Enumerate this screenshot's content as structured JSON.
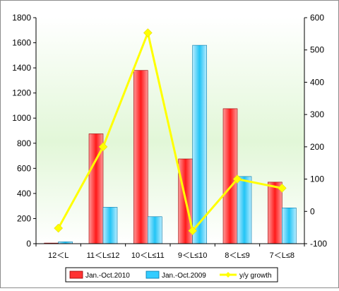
{
  "chart_data": {
    "type": "bar",
    "categories": [
      "12＜L",
      "11＜L≤12",
      "10＜L≤11",
      "9＜L≤10",
      "8＜L≤9",
      "7＜L≤8"
    ],
    "series": [
      {
        "name": "Jan.-Oct.2010",
        "type": "bar",
        "axis": "left",
        "color": "#ff3333",
        "values": [
          5,
          875,
          1380,
          675,
          1075,
          490
        ]
      },
      {
        "name": "Jan.-Oct.2009",
        "type": "bar",
        "axis": "left",
        "color": "#33ccff",
        "values": [
          15,
          290,
          215,
          1580,
          535,
          285
        ]
      },
      {
        "name": "y/y growth",
        "type": "line",
        "axis": "right",
        "color": "#ffff00",
        "values": [
          -52,
          200,
          553,
          -60,
          100,
          72
        ]
      }
    ],
    "y_left": {
      "min": 0,
      "max": 1800,
      "ticks": [
        0,
        200,
        400,
        600,
        800,
        1000,
        1200,
        1400,
        1600,
        1800
      ]
    },
    "y_right": {
      "min": -100,
      "max": 600,
      "ticks": [
        -100,
        0,
        100,
        200,
        300,
        400,
        500,
        600
      ]
    },
    "legend_position": "bottom",
    "grid": false
  }
}
